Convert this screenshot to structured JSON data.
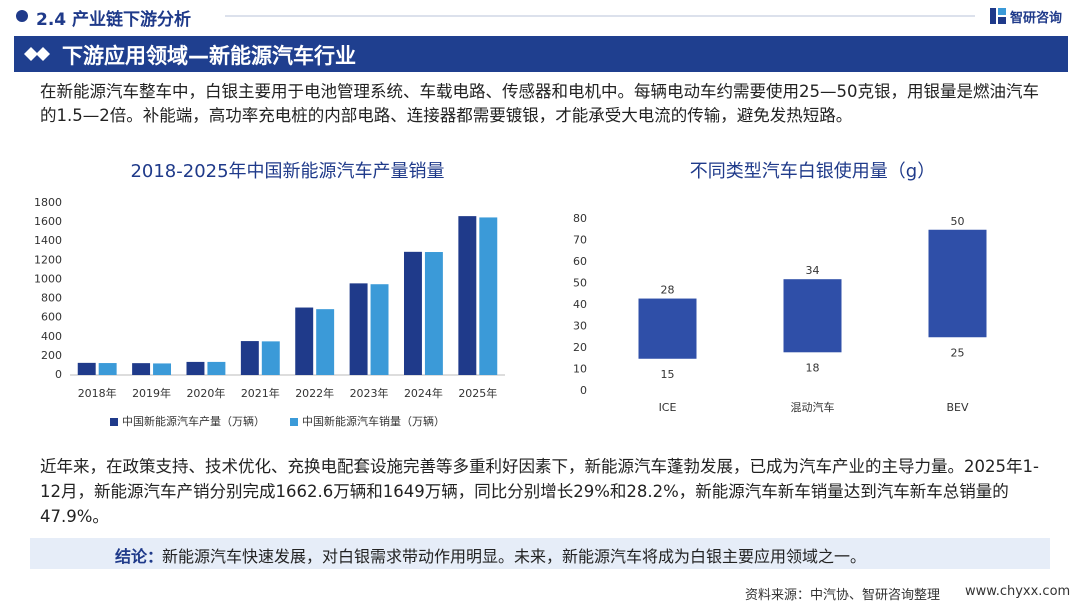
{
  "header": {
    "section": "2.4 产业链下游分析",
    "logo": "智研咨询",
    "banner": "下游应用领域—新能源汽车行业"
  },
  "paragraphs": [
    "在新能源汽车整车中，白银主要用于电池管理系统、车载电路、传感器和电机中。每辆电动车约需要使用25—50克银，用银量是燃油汽车的1.5—2倍。补能端，高功率充电桩的内部电路、连接器都需要镀银，才能承受大电流的传输，避免发热短路。",
    "近年来，在政策支持、技术优化、充换电配套设施完善等多重利好因素下，新能源汽车蓬勃发展，已成为汽车产业的主导力量。2025年1-12月，新能源汽车产销分别完成1662.6万辆和1649万辆，同比分别增长29%和28.2%，新能源汽车新车销量达到汽车新车总销量的47.9%。"
  ],
  "conclusion": {
    "label": "结论：",
    "text": "新能源汽车快速发展，对白银需求带动作用明显。未来，新能源汽车将成为白银主要应用领域之一。"
  },
  "footer": {
    "source": "资料来源：中汽协、智研咨询整理",
    "website": "www.chyxx.com"
  },
  "chart_data": [
    {
      "type": "bar",
      "title": "2018-2025年中国新能源汽车产量销量",
      "categories": [
        "2018年",
        "2019年",
        "2020年",
        "2021年",
        "2022年",
        "2023年",
        "2024年",
        "2025年"
      ],
      "series": [
        {
          "name": "中国新能源汽车产量（万辆）",
          "color": "#1f3a8a",
          "values": [
            127,
            124,
            137,
            355,
            706,
            959,
            1289,
            1662.6
          ]
        },
        {
          "name": "中国新能源汽车销量（万辆）",
          "color": "#3b9ad8",
          "values": [
            125,
            121,
            137,
            352,
            689,
            950,
            1287,
            1649
          ]
        }
      ],
      "ylim": [
        0,
        1800
      ],
      "yticks": [
        0,
        200,
        400,
        600,
        800,
        1000,
        1200,
        1400,
        1600,
        1800
      ],
      "x_axis_line": true,
      "legend": "bottom"
    },
    {
      "type": "bar",
      "title": "不同类型汽车白银使用量（g）",
      "stacked": true,
      "categories": [
        "ICE",
        "混动汽车",
        "BEV"
      ],
      "series": [
        {
          "color": "none",
          "values": [
            15,
            18,
            25
          ]
        },
        {
          "color": "#2f4fa8",
          "values": [
            28,
            34,
            50
          ]
        }
      ],
      "ylim": [
        0,
        80
      ],
      "yticks": [
        0,
        10,
        20,
        30,
        40,
        50,
        60,
        70,
        80
      ],
      "x_axis_line": false,
      "data_labels": true
    }
  ]
}
